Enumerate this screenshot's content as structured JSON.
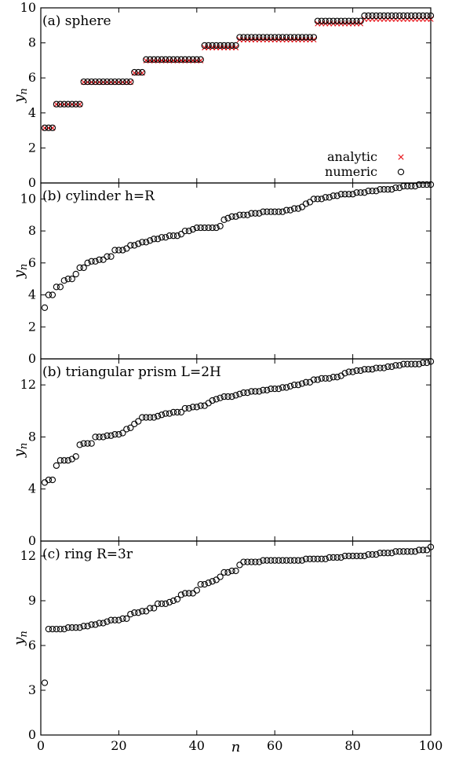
{
  "figure": {
    "xlabel": "n",
    "ylabel": "y",
    "ylabel_sub": "n",
    "x_ticks": [
      0,
      20,
      40,
      60,
      80,
      100
    ],
    "xlim": [
      0,
      100
    ]
  },
  "legend": {
    "position": "bottom-right of panel (a)",
    "entries": [
      {
        "label": "analytic",
        "marker": "x",
        "color": "#e8141a"
      },
      {
        "label": "numeric",
        "marker": "circle",
        "color": "#000000"
      }
    ]
  },
  "chart_data": [
    {
      "type": "scatter",
      "title": "(a) sphere",
      "ylim": [
        0,
        10
      ],
      "y_ticks": [
        0,
        2,
        4,
        6,
        8,
        10
      ],
      "series": [
        {
          "name": "analytic",
          "marker": "x",
          "color": "#e8141a",
          "plateaus": [
            {
              "n_start": 1,
              "n_end": 3,
              "y": 3.14
            },
            {
              "n_start": 4,
              "n_end": 10,
              "y": 4.49
            },
            {
              "n_start": 11,
              "n_end": 23,
              "y": 5.76
            },
            {
              "n_start": 24,
              "n_end": 26,
              "y": 6.28
            },
            {
              "n_start": 27,
              "n_end": 41,
              "y": 6.99
            },
            {
              "n_start": 42,
              "n_end": 50,
              "y": 7.73
            },
            {
              "n_start": 51,
              "n_end": 70,
              "y": 8.18
            },
            {
              "n_start": 71,
              "n_end": 82,
              "y": 9.1
            },
            {
              "n_start": 83,
              "n_end": 100,
              "y": 9.36
            }
          ]
        },
        {
          "name": "numeric",
          "marker": "circle",
          "color": "#000000",
          "plateaus": [
            {
              "n_start": 1,
              "n_end": 3,
              "y": 3.15
            },
            {
              "n_start": 4,
              "n_end": 10,
              "y": 4.5
            },
            {
              "n_start": 11,
              "n_end": 23,
              "y": 5.78
            },
            {
              "n_start": 24,
              "n_end": 26,
              "y": 6.32
            },
            {
              "n_start": 27,
              "n_end": 41,
              "y": 7.05
            },
            {
              "n_start": 42,
              "n_end": 50,
              "y": 7.85
            },
            {
              "n_start": 51,
              "n_end": 70,
              "y": 8.32
            },
            {
              "n_start": 71,
              "n_end": 82,
              "y": 9.25
            },
            {
              "n_start": 83,
              "n_end": 100,
              "y": 9.55
            }
          ]
        }
      ]
    },
    {
      "type": "scatter",
      "title": "(b) cylinder h=R",
      "ylim": [
        0,
        11
      ],
      "y_ticks": [
        0,
        2,
        4,
        6,
        8,
        10
      ],
      "series": [
        {
          "name": "numeric",
          "marker": "circle",
          "color": "#000000",
          "x": [
            1,
            2,
            3,
            4,
            5,
            6,
            7,
            8,
            9,
            10,
            11,
            12,
            13,
            14,
            15,
            16,
            17,
            18,
            19,
            20,
            21,
            22,
            23,
            24,
            25,
            26,
            27,
            28,
            29,
            30,
            31,
            32,
            33,
            34,
            35,
            36,
            37,
            38,
            39,
            40,
            41,
            42,
            43,
            44,
            45,
            46,
            47,
            48,
            49,
            50,
            51,
            52,
            53,
            54,
            55,
            56,
            57,
            58,
            59,
            60,
            61,
            62,
            63,
            64,
            65,
            66,
            67,
            68,
            69,
            70,
            71,
            72,
            73,
            74,
            75,
            76,
            77,
            78,
            79,
            80,
            81,
            82,
            83,
            84,
            85,
            86,
            87,
            88,
            89,
            90,
            91,
            92,
            93,
            94,
            95,
            96,
            97,
            98,
            99,
            100
          ],
          "y": [
            3.2,
            4.0,
            4.0,
            4.5,
            4.5,
            4.9,
            5.0,
            5.0,
            5.3,
            5.7,
            5.7,
            6.0,
            6.1,
            6.1,
            6.2,
            6.2,
            6.4,
            6.4,
            6.8,
            6.8,
            6.8,
            6.9,
            7.1,
            7.1,
            7.2,
            7.3,
            7.3,
            7.4,
            7.5,
            7.5,
            7.6,
            7.6,
            7.7,
            7.7,
            7.7,
            7.8,
            8.0,
            8.0,
            8.1,
            8.2,
            8.2,
            8.2,
            8.2,
            8.2,
            8.2,
            8.3,
            8.7,
            8.8,
            8.9,
            8.9,
            9.0,
            9.0,
            9.0,
            9.1,
            9.1,
            9.1,
            9.2,
            9.2,
            9.2,
            9.2,
            9.2,
            9.2,
            9.3,
            9.3,
            9.4,
            9.4,
            9.5,
            9.7,
            9.8,
            10.0,
            10.0,
            10.0,
            10.1,
            10.1,
            10.2,
            10.2,
            10.3,
            10.3,
            10.3,
            10.3,
            10.4,
            10.4,
            10.4,
            10.5,
            10.5,
            10.5,
            10.6,
            10.6,
            10.6,
            10.6,
            10.7,
            10.7,
            10.8,
            10.8,
            10.8,
            10.8,
            10.9,
            10.9,
            10.9,
            10.9
          ]
        }
      ]
    },
    {
      "type": "scatter",
      "title": "(b) triangular prism L=2H",
      "ylim": [
        0,
        14
      ],
      "y_ticks": [
        0,
        4,
        8,
        12
      ],
      "series": [
        {
          "name": "numeric",
          "marker": "circle",
          "color": "#000000",
          "x": [
            1,
            2,
            3,
            4,
            5,
            6,
            7,
            8,
            9,
            10,
            11,
            12,
            13,
            14,
            15,
            16,
            17,
            18,
            19,
            20,
            21,
            22,
            23,
            24,
            25,
            26,
            27,
            28,
            29,
            30,
            31,
            32,
            33,
            34,
            35,
            36,
            37,
            38,
            39,
            40,
            41,
            42,
            43,
            44,
            45,
            46,
            47,
            48,
            49,
            50,
            51,
            52,
            53,
            54,
            55,
            56,
            57,
            58,
            59,
            60,
            61,
            62,
            63,
            64,
            65,
            66,
            67,
            68,
            69,
            70,
            71,
            72,
            73,
            74,
            75,
            76,
            77,
            78,
            79,
            80,
            81,
            82,
            83,
            84,
            85,
            86,
            87,
            88,
            89,
            90,
            91,
            92,
            93,
            94,
            95,
            96,
            97,
            98,
            99,
            100
          ],
          "y": [
            4.5,
            4.7,
            4.7,
            5.8,
            6.2,
            6.2,
            6.2,
            6.3,
            6.5,
            7.4,
            7.5,
            7.5,
            7.5,
            8.0,
            8.0,
            8.0,
            8.1,
            8.1,
            8.2,
            8.2,
            8.3,
            8.6,
            8.7,
            9.0,
            9.2,
            9.5,
            9.5,
            9.5,
            9.5,
            9.6,
            9.7,
            9.8,
            9.8,
            9.9,
            9.9,
            9.9,
            10.2,
            10.2,
            10.3,
            10.3,
            10.4,
            10.4,
            10.6,
            10.8,
            10.9,
            11.0,
            11.1,
            11.1,
            11.1,
            11.2,
            11.3,
            11.4,
            11.4,
            11.5,
            11.5,
            11.5,
            11.6,
            11.6,
            11.7,
            11.7,
            11.7,
            11.8,
            11.8,
            11.9,
            12.0,
            12.0,
            12.1,
            12.2,
            12.2,
            12.4,
            12.4,
            12.5,
            12.5,
            12.5,
            12.6,
            12.6,
            12.7,
            12.9,
            13.0,
            13.0,
            13.1,
            13.1,
            13.2,
            13.2,
            13.2,
            13.3,
            13.3,
            13.3,
            13.4,
            13.4,
            13.5,
            13.5,
            13.6,
            13.6,
            13.6,
            13.6,
            13.6,
            13.7,
            13.7,
            13.8
          ]
        }
      ]
    },
    {
      "type": "scatter",
      "title": "(c) ring R=3r",
      "ylim": [
        0,
        13
      ],
      "y_ticks": [
        0,
        3,
        6,
        9,
        12
      ],
      "series": [
        {
          "name": "numeric",
          "marker": "circle",
          "color": "#000000",
          "x": [
            1,
            2,
            3,
            4,
            5,
            6,
            7,
            8,
            9,
            10,
            11,
            12,
            13,
            14,
            15,
            16,
            17,
            18,
            19,
            20,
            21,
            22,
            23,
            24,
            25,
            26,
            27,
            28,
            29,
            30,
            31,
            32,
            33,
            34,
            35,
            36,
            37,
            38,
            39,
            40,
            41,
            42,
            43,
            44,
            45,
            46,
            47,
            48,
            49,
            50,
            51,
            52,
            53,
            54,
            55,
            56,
            57,
            58,
            59,
            60,
            61,
            62,
            63,
            64,
            65,
            66,
            67,
            68,
            69,
            70,
            71,
            72,
            73,
            74,
            75,
            76,
            77,
            78,
            79,
            80,
            81,
            82,
            83,
            84,
            85,
            86,
            87,
            88,
            89,
            90,
            91,
            92,
            93,
            94,
            95,
            96,
            97,
            98,
            99,
            100
          ],
          "y": [
            3.5,
            7.1,
            7.1,
            7.1,
            7.1,
            7.1,
            7.2,
            7.2,
            7.2,
            7.2,
            7.3,
            7.3,
            7.4,
            7.4,
            7.5,
            7.5,
            7.6,
            7.7,
            7.7,
            7.7,
            7.8,
            7.8,
            8.1,
            8.2,
            8.2,
            8.3,
            8.3,
            8.5,
            8.5,
            8.8,
            8.8,
            8.8,
            8.9,
            9.0,
            9.1,
            9.4,
            9.5,
            9.5,
            9.5,
            9.7,
            10.1,
            10.1,
            10.2,
            10.3,
            10.4,
            10.6,
            10.9,
            10.9,
            11.0,
            11.0,
            11.4,
            11.6,
            11.6,
            11.6,
            11.6,
            11.6,
            11.7,
            11.7,
            11.7,
            11.7,
            11.7,
            11.7,
            11.7,
            11.7,
            11.7,
            11.7,
            11.7,
            11.8,
            11.8,
            11.8,
            11.8,
            11.8,
            11.8,
            11.9,
            11.9,
            11.9,
            11.9,
            12.0,
            12.0,
            12.0,
            12.0,
            12.0,
            12.0,
            12.1,
            12.1,
            12.1,
            12.2,
            12.2,
            12.2,
            12.2,
            12.3,
            12.3,
            12.3,
            12.3,
            12.3,
            12.3,
            12.4,
            12.4,
            12.4,
            12.6
          ]
        }
      ]
    }
  ]
}
